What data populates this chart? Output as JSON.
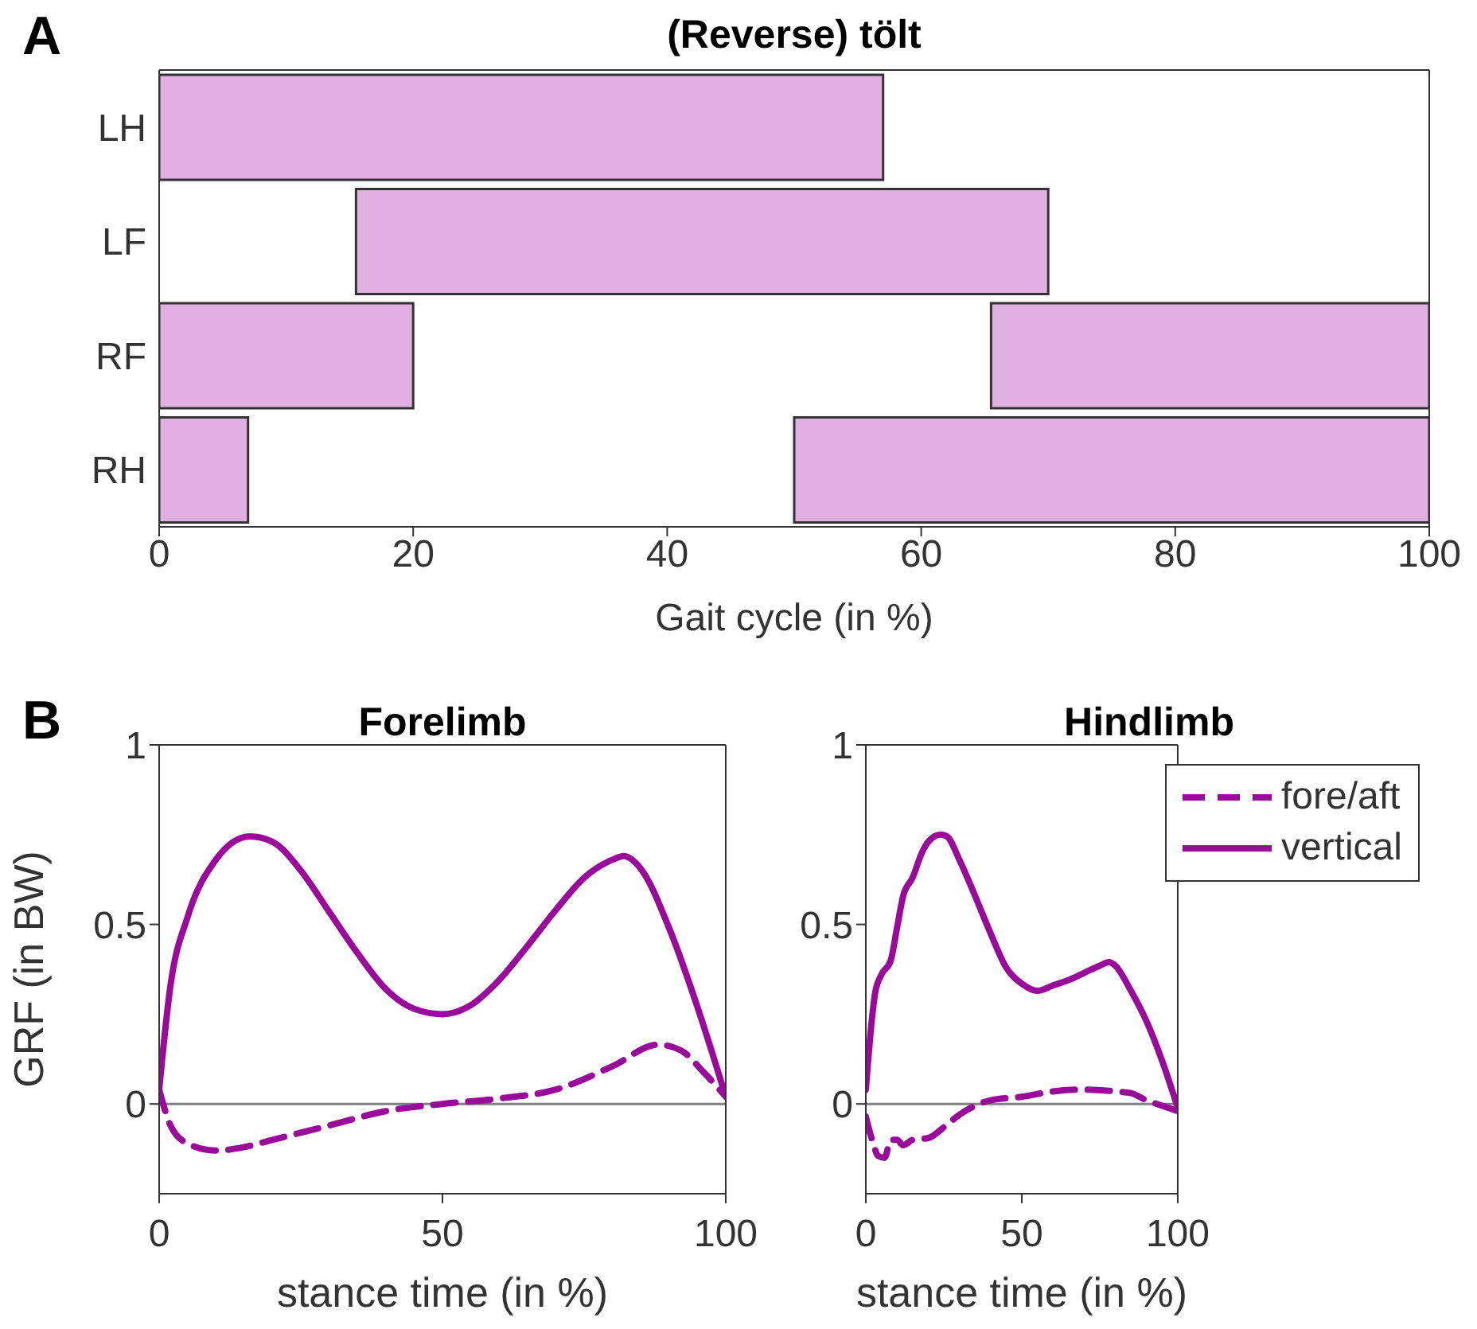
{
  "chart_data": [
    {
      "type": "bar",
      "orientation": "horizontal",
      "title": "(Reverse) tölt",
      "xlabel": "Gait cycle (in %)",
      "annotations": [
        "A"
      ],
      "categories": [
        "LH",
        "LF",
        "RF",
        "RH"
      ],
      "xlim": [
        0,
        100
      ],
      "xticks": [
        0,
        20,
        40,
        60,
        80,
        100
      ],
      "series": [
        {
          "color": "#e0b0e0",
          "base": [
            0,
            15.5,
            0,
            0
          ],
          "values": [
            57,
            54.5,
            20,
            7
          ]
        },
        {
          "color": "#e0b0e0",
          "base": [
            null,
            null,
            65.5,
            50
          ],
          "values": [
            null,
            null,
            34.5,
            50
          ]
        }
      ]
    },
    {
      "type": "line",
      "title": "Forelimb",
      "xlabel": "stance time (in %)",
      "ylabel": "GRF (in BW)",
      "annotations": [
        "B"
      ],
      "xlim": [
        0,
        100
      ],
      "xticks": [
        0,
        50,
        100
      ],
      "ylim": [
        -0.25,
        1
      ],
      "yticks": [
        0,
        0.5,
        1
      ],
      "ref_lines": [
        {
          "axis": "y",
          "value": 0,
          "color": "#808080"
        }
      ],
      "series": [
        {
          "color": "#9a0a9a",
          "line_style": "dashed",
          "x": [
            0,
            2,
            5,
            10,
            15,
            20,
            30,
            40,
            50,
            60,
            70,
            80,
            88,
            92,
            96,
            100
          ],
          "values": [
            0.04,
            -0.06,
            -0.11,
            -0.13,
            -0.12,
            -0.1,
            -0.06,
            -0.02,
            0,
            0.015,
            0.04,
            0.105,
            0.165,
            0.15,
            0.09,
            0.02
          ]
        },
        {
          "color": "#9a0a9a",
          "line_style": "solid",
          "x": [
            0,
            2,
            5,
            10,
            16,
            20,
            25,
            30,
            35,
            40,
            45,
            50,
            55,
            60,
            65,
            70,
            75,
            80,
            82,
            85,
            90,
            95,
            100
          ],
          "values": [
            0.04,
            0.33,
            0.52,
            0.68,
            0.745,
            0.73,
            0.65,
            0.535,
            0.42,
            0.32,
            0.265,
            0.25,
            0.275,
            0.345,
            0.44,
            0.54,
            0.63,
            0.68,
            0.69,
            0.655,
            0.49,
            0.27,
            0.02
          ]
        }
      ]
    },
    {
      "type": "line",
      "title": "Hindlimb",
      "xlabel": "stance time (in %)",
      "legend": "top right",
      "xlim": [
        0,
        100
      ],
      "xticks": [
        0,
        50,
        100
      ],
      "ylim": [
        -0.25,
        1
      ],
      "yticks": [
        0,
        0.5,
        1
      ],
      "ref_lines": [
        {
          "axis": "y",
          "value": 0,
          "color": "#808080"
        }
      ],
      "series": [
        {
          "name": "fore/aft",
          "color": "#9a0a9a",
          "line_style": "dashed",
          "x": [
            0,
            2,
            4,
            6,
            8,
            10,
            12,
            15,
            20,
            25,
            30,
            35,
            40,
            50,
            60,
            70,
            80,
            85,
            90,
            95,
            100
          ],
          "values": [
            -0.035,
            -0.1,
            -0.145,
            -0.15,
            -0.1,
            -0.1,
            -0.115,
            -0.1,
            -0.095,
            -0.065,
            -0.03,
            -0.005,
            0.01,
            0.02,
            0.035,
            0.04,
            0.035,
            0.03,
            0.01,
            -0.005,
            -0.02
          ]
        },
        {
          "name": "vertical",
          "color": "#9a0a9a",
          "line_style": "solid",
          "x": [
            0,
            2,
            3,
            5,
            8,
            10,
            12,
            15,
            18,
            20,
            24,
            26,
            30,
            35,
            40,
            45,
            50,
            55,
            60,
            65,
            70,
            75,
            78,
            80,
            85,
            90,
            95,
            100
          ],
          "values": [
            0.04,
            0.24,
            0.31,
            0.36,
            0.4,
            0.49,
            0.58,
            0.63,
            0.7,
            0.73,
            0.75,
            0.745,
            0.68,
            0.58,
            0.475,
            0.38,
            0.335,
            0.315,
            0.33,
            0.345,
            0.365,
            0.385,
            0.395,
            0.385,
            0.315,
            0.23,
            0.12,
            -0.01
          ]
        }
      ]
    }
  ]
}
